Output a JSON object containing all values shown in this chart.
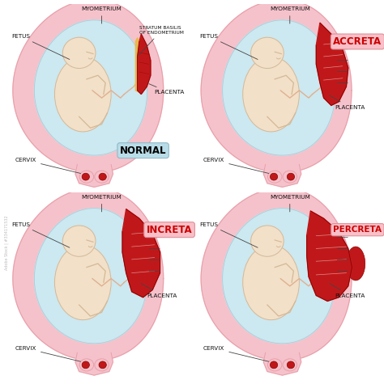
{
  "bg_color": "#ffffff",
  "uterus_outer_color": "#f5c2cb",
  "uterus_inner_color": "#cce8f0",
  "fetus_skin_color": "#f2e0c8",
  "fetus_line_color": "#d4b896",
  "placenta_color": "#c0181a",
  "placenta_edge_color": "#8b0000",
  "yellow_layer_color": "#e8b84b",
  "cervix_outer_color": "#f5c2cb",
  "cervix_inner_color": "#c0181a",
  "uterus_edge_color": "#e8a0aa",
  "inner_edge_color": "#a8ccd8",
  "text_color": "#111111",
  "line_color": "#444444",
  "panels": [
    {
      "name": "NORMAL",
      "label_color": "#000000",
      "label_bg": "#b8dde8",
      "label_edge": "#90b8c8"
    },
    {
      "name": "ACCRETA",
      "label_color": "#cc0000",
      "label_bg": "#f8c0c8",
      "label_edge": "#e09098"
    },
    {
      "name": "INCRETA",
      "label_color": "#cc0000",
      "label_bg": "#f8c0c8",
      "label_edge": "#e09098"
    },
    {
      "name": "PERCRETA",
      "label_color": "#cc0000",
      "label_bg": "#f8c0c8",
      "label_edge": "#e09098"
    }
  ],
  "watermark": "Adobe Stock | #334171532"
}
